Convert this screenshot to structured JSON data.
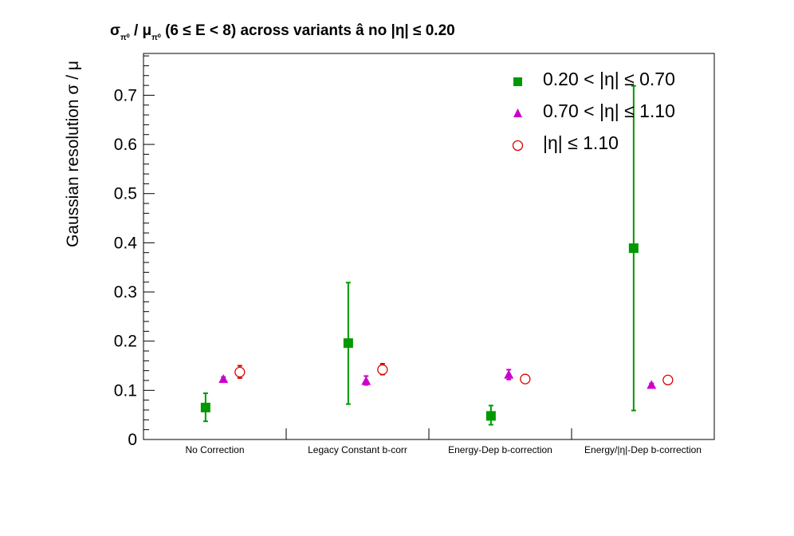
{
  "title": {
    "main": "σ",
    "sub1": "π⁰",
    "slash": " / μ",
    "sub2": "π⁰",
    "rest": " (6 ≤ E < 8) across variants  â  no |η| ≤ 0.20"
  },
  "chart_data": {
    "type": "scatter",
    "ylabel": "Gaussian resolution  σ / μ",
    "xlabel": "",
    "categories": [
      "No Correction",
      "Legacy Constant b-corr",
      "Energy-Dep b-correction",
      "Energy/|η|-Dep b-correction"
    ],
    "ylim": [
      0,
      0.785
    ],
    "yticks": [
      0,
      0.1,
      0.2,
      0.3,
      0.4,
      0.5,
      0.6,
      0.7
    ],
    "ytick_labels": [
      "0",
      "0.1",
      "0.2",
      "0.3",
      "0.4",
      "0.5",
      "0.6",
      "0.7"
    ],
    "legend_position": "top-right",
    "series": [
      {
        "name": "0.20 < |η| ≤ 0.70",
        "marker": "filled-square",
        "color": "#009900",
        "values": [
          0.065,
          0.196,
          0.048,
          0.389
        ],
        "err_low": [
          0.028,
          0.124,
          0.018,
          0.33
        ],
        "err_high": [
          0.029,
          0.123,
          0.021,
          0.33
        ]
      },
      {
        "name": "0.70 < |η| ≤ 1.10",
        "marker": "filled-triangle",
        "color": "#cc00cc",
        "values": [
          0.123,
          0.119,
          0.132,
          0.111
        ],
        "err_low": [
          0.004,
          0.008,
          0.01,
          0.003
        ],
        "err_high": [
          0.004,
          0.01,
          0.01,
          0.003
        ]
      },
      {
        "name": "|η| ≤ 1.10",
        "marker": "open-circle",
        "color": "#dd0000",
        "values": [
          0.137,
          0.142,
          0.123,
          0.121
        ],
        "err_low": [
          0.012,
          0.01,
          0.004,
          0.004
        ],
        "err_high": [
          0.013,
          0.012,
          0.004,
          0.004
        ]
      }
    ]
  }
}
